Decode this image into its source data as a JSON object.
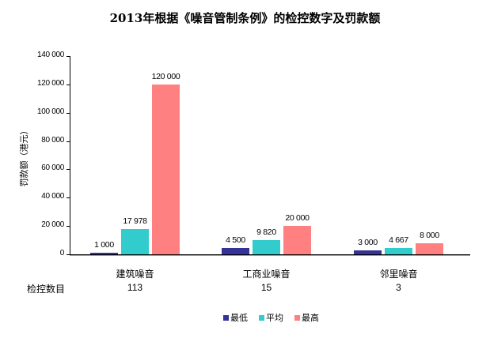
{
  "chart_data": {
    "type": "bar",
    "title": "2013年根据《噪音管制条例》的检控数字及罚款额",
    "xlabel": "",
    "ylabel": "罚款额（港元）",
    "ylim": [
      0,
      140000
    ],
    "yticks": [
      "0",
      "20 000",
      "40 000",
      "60 000",
      "80 000",
      "100 000",
      "120 000",
      "140 000"
    ],
    "categories": [
      "建筑噪音",
      "工商业噪音",
      "邻里噪音"
    ],
    "series": [
      {
        "name": "最低",
        "color": "#333399",
        "values": [
          1000,
          4500,
          3000
        ],
        "labels": [
          "1 000",
          "4 500",
          "3 000"
        ]
      },
      {
        "name": "平均",
        "color": "#33CCCC",
        "values": [
          17978,
          9820,
          4667
        ],
        "labels": [
          "17 978",
          "9 820",
          "4 667"
        ]
      },
      {
        "name": "最高",
        "color": "#FF8080",
        "values": [
          120000,
          20000,
          8000
        ],
        "labels": [
          "120 000",
          "20 000",
          "8 000"
        ]
      }
    ],
    "table_row": {
      "label": "检控数目",
      "values": [
        "113",
        "15",
        "3"
      ]
    },
    "legend_position": "bottom",
    "grid": false
  }
}
